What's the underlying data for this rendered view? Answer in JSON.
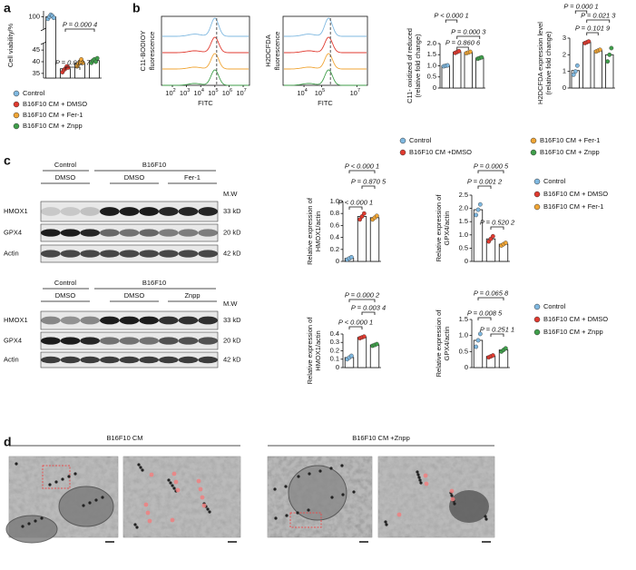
{
  "panel_labels": [
    "a",
    "b",
    "c",
    "d"
  ],
  "flow": [
    {
      "ylabel": [
        "C11-BODIOY",
        "fluorescence"
      ],
      "xlabel": "FITC",
      "xlim": [
        17,
        28000000
      ],
      "xticks": [
        {
          "value": 100,
          "label": "10",
          "sup": "2"
        },
        {
          "value": 1000,
          "label": "10",
          "sup": "3"
        },
        {
          "value": 10000,
          "label": "10",
          "sup": "4"
        },
        {
          "value": 100000,
          "label": "10",
          "sup": "5"
        },
        {
          "value": 1000000,
          "label": "10",
          "sup": "6"
        },
        {
          "value": 10000000,
          "label": "10",
          "sup": "7"
        }
      ]
    },
    {
      "ylabel": [
        "H2DCFDA",
        "fluorescence"
      ],
      "xlabel": "FITC",
      "xlim": [
        650,
        40000000
      ],
      "xticks": [
        {
          "value": 10000,
          "label": "10",
          "sup": "4"
        },
        {
          "value": 100000,
          "label": "10",
          "sup": "5"
        },
        {
          "value": 10000000,
          "label": "10",
          "sup": "7"
        }
      ]
    }
  ],
  "legend_b": {
    "names": [
      "Control",
      "B16F10 CM +DMSO",
      "B16F10 CM + Fer-1",
      "B16F10 CM + Znpp"
    ],
    "colors": [
      "#7fb8e0",
      "#e03a2f",
      "#f0a535",
      "#3f9e4a"
    ]
  },
  "blots": [
    {
      "groups": [
        "Control",
        "B16F10"
      ],
      "treatments": [
        "DMSO",
        "DMSO",
        "Fer-1"
      ],
      "mw_title": "M.W",
      "rows": [
        "HMOX1",
        "GPX4",
        "Actin"
      ],
      "mw": [
        "33 kD",
        "20 kD",
        "42 kD"
      ]
    },
    {
      "groups": [
        "Control",
        "B16F10"
      ],
      "treatments": [
        "DMSO",
        "DMSO",
        "Znpp"
      ],
      "mw_title": "M.W",
      "rows": [
        "HMOX1",
        "GPX4",
        "Actin"
      ],
      "mw": [
        "33 kD",
        "20 kD",
        "42 kD"
      ]
    }
  ],
  "micrographs": {
    "titles": [
      "B16F10 CM",
      "B16F10 CM +Znpp"
    ]
  },
  "chart_data": [
    {
      "type": "bar",
      "ylabel": [
        "Cell viability/%"
      ],
      "ylim": [
        33,
        102
      ],
      "ybreak": [
        47,
        95
      ],
      "yticks": [
        35,
        40,
        45,
        100
      ],
      "values": [
        100,
        37,
        39.5,
        40.5
      ],
      "colors": [
        "#7fb8e0",
        "#e03a2f",
        "#f0a535",
        "#3f9e4a"
      ],
      "points": [
        [
          99,
          100,
          101,
          100.5,
          99.5
        ],
        [
          35.5,
          36.5,
          37,
          38,
          37.5
        ],
        [
          38,
          39,
          40,
          41,
          39.5
        ],
        [
          39.5,
          40.5,
          41,
          40,
          41.5
        ]
      ],
      "annotations": [
        "P = 0.000 4",
        "P = 0.012 7"
      ],
      "legend": {
        "names": [
          "Control",
          "B16F10 CM + DMSO",
          "B16F10 CM + Fer-1",
          "B16F10 CM + Znpp"
        ],
        "colors": [
          "#7fb8e0",
          "#e03a2f",
          "#f0a535",
          "#3f9e4a"
        ]
      }
    },
    {
      "type": "bar",
      "ylabel": [
        "C11- oxidized of reduced",
        "(relative fold change)"
      ],
      "ylim": [
        0,
        2
      ],
      "yticks": [
        0,
        0.5,
        {
          "value": 1,
          "label": "1.0"
        },
        1.5,
        {
          "value": 2,
          "label": "2.0"
        }
      ],
      "values": [
        1.0,
        1.62,
        1.6,
        1.35
      ],
      "colors": [
        "#7fb8e0",
        "#e03a2f",
        "#f0a535",
        "#3f9e4a"
      ],
      "points": [
        [
          0.98,
          1.0,
          1.02
        ],
        [
          1.58,
          1.62,
          1.66
        ],
        [
          1.57,
          1.6,
          1.63
        ],
        [
          1.32,
          1.35,
          1.38
        ]
      ],
      "annotations": [
        "P < 0.000 1",
        "P = 0.000 3",
        "P = 0.860 6"
      ]
    },
    {
      "type": "bar",
      "ylabel": [
        "H2DCFDA expression level",
        "(relative fold change)"
      ],
      "ylim": [
        0,
        3
      ],
      "yticks": [
        0,
        1,
        2,
        3
      ],
      "values": [
        1.05,
        2.75,
        2.25,
        2.0
      ],
      "colors": [
        "#7fb8e0",
        "#e03a2f",
        "#f0a535",
        "#3f9e4a"
      ],
      "points": [
        [
          0.8,
          1.0,
          1.35
        ],
        [
          2.7,
          2.75,
          2.8
        ],
        [
          2.2,
          2.25,
          2.3
        ],
        [
          1.6,
          2.0,
          2.4
        ]
      ],
      "annotations": [
        "P = 0.000 1",
        "P = 0.021 3",
        "P = 0.101 9"
      ]
    },
    {
      "type": "bar",
      "ylabel": [
        "Relative expression of",
        "HMOX1/actin"
      ],
      "ylim": [
        0,
        1
      ],
      "yticks": [
        0,
        0.2,
        0.4,
        0.6,
        0.8,
        {
          "value": 1,
          "label": "1.0"
        }
      ],
      "values": [
        0.05,
        0.75,
        0.73
      ],
      "colors": [
        "#7fb8e0",
        "#e03a2f",
        "#f0a535"
      ],
      "points": [
        [
          0.03,
          0.05,
          0.07
        ],
        [
          0.7,
          0.75,
          0.8
        ],
        [
          0.7,
          0.73,
          0.76
        ]
      ],
      "annotations": [
        "P < 0.000 1",
        "P = 0.870 5",
        "P < 0.000 1"
      ]
    },
    {
      "type": "bar",
      "ylabel": [
        "Relative expression of",
        "GPX4/actin"
      ],
      "ylim": [
        0,
        2.5
      ],
      "yticks": [
        0,
        0.5,
        {
          "value": 1,
          "label": "1.0"
        },
        1.5,
        {
          "value": 2,
          "label": "2.0"
        },
        2.5
      ],
      "values": [
        1.95,
        0.85,
        0.65
      ],
      "colors": [
        "#7fb8e0",
        "#e03a2f",
        "#f0a535"
      ],
      "points": [
        [
          1.75,
          1.95,
          2.15
        ],
        [
          0.75,
          0.85,
          0.95
        ],
        [
          0.6,
          0.65,
          0.7
        ]
      ],
      "annotations": [
        "P = 0.000 5",
        "P = 0.001 2",
        "P = 0.520 2"
      ],
      "legend": {
        "names": [
          "Control",
          "B16F10 CM + DMSO",
          "B16F10 CM + Fer-1"
        ],
        "colors": [
          "#7fb8e0",
          "#e03a2f",
          "#f0a535"
        ]
      }
    },
    {
      "type": "bar",
      "ylabel": [
        "Relative expression of",
        "HMOX1/actin"
      ],
      "ylim": [
        0,
        0.4
      ],
      "yticks": [
        0,
        0.1,
        0.2,
        0.3,
        0.4
      ],
      "values": [
        0.12,
        0.36,
        0.27
      ],
      "colors": [
        "#7fb8e0",
        "#e03a2f",
        "#3f9e4a"
      ],
      "points": [
        [
          0.1,
          0.12,
          0.14
        ],
        [
          0.35,
          0.36,
          0.37
        ],
        [
          0.26,
          0.27,
          0.28
        ]
      ],
      "annotations": [
        "P = 0.000 2",
        "P < 0.000 1",
        "P = 0.003 4"
      ]
    },
    {
      "type": "bar",
      "ylabel": [
        "Relative expression of",
        "GPX4/actin"
      ],
      "ylim": [
        0,
        1.5
      ],
      "yticks": [
        0,
        0.5,
        {
          "value": 1,
          "label": "1.0"
        },
        1.5
      ],
      "values": [
        0.85,
        0.35,
        0.55
      ],
      "colors": [
        "#7fb8e0",
        "#e03a2f",
        "#3f9e4a"
      ],
      "points": [
        [
          0.65,
          0.85,
          1.05
        ],
        [
          0.32,
          0.35,
          0.38
        ],
        [
          0.5,
          0.55,
          0.6
        ]
      ],
      "annotations": [
        "P = 0.065 8",
        "P = 0.008 5",
        "P = 0.251 1"
      ],
      "legend": {
        "names": [
          "Control",
          "B16F10 CM + DMSO",
          "B16F10 CM + Znpp"
        ],
        "colors": [
          "#7fb8e0",
          "#e03a2f",
          "#3f9e4a"
        ]
      }
    }
  ]
}
